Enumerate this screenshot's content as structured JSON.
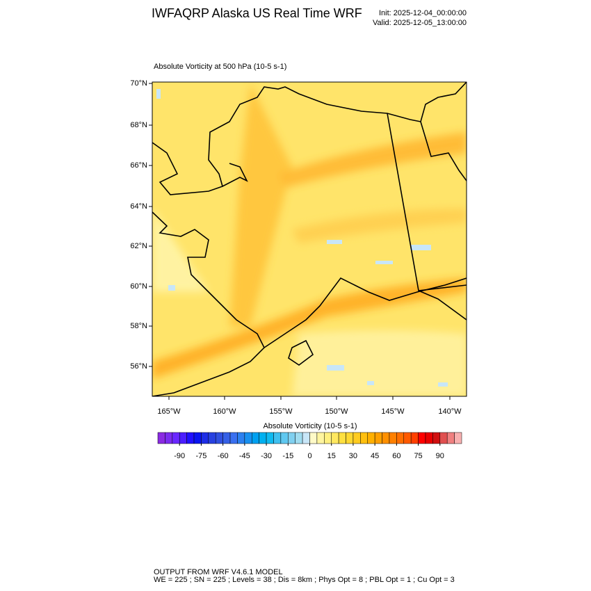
{
  "header": {
    "title": "IWFAQRP Alaska US Real Time WRF",
    "init": "Init: 2025-12-04_00:00:00",
    "valid": "Valid: 2025-12-05_13:00:00"
  },
  "plot": {
    "title": "Absolute Vorticity at 500 hPa   (10-5 s-1)",
    "lat_labels": [
      "70°N",
      "68°N",
      "66°N",
      "64°N",
      "62°N",
      "60°N",
      "58°N",
      "56°N"
    ],
    "lon_labels": [
      "165°W",
      "160°W",
      "155°W",
      "150°W",
      "145°W",
      "140°W"
    ]
  },
  "colorbar": {
    "title": "Absolute Vorticity  (10-5 s-1)",
    "clim": [
      -105,
      105
    ],
    "ticks": [
      -90,
      -75,
      -60,
      -45,
      -30,
      -15,
      0,
      15,
      30,
      45,
      60,
      75,
      90
    ],
    "colors": [
      "#8a2be2",
      "#7b2cf0",
      "#6a28ff",
      "#4b1eff",
      "#2010ff",
      "#0a14f0",
      "#1e2ee6",
      "#2841e0",
      "#3050e0",
      "#3560e6",
      "#3a70f0",
      "#2c80f0",
      "#1890f0",
      "#00a0f0",
      "#00b0f0",
      "#10baf0",
      "#40c0f0",
      "#60c8f0",
      "#80d0f0",
      "#a0dcf0",
      "#c8e6f8",
      "#fffac8",
      "#fff5a0",
      "#fff080",
      "#ffe860",
      "#ffe040",
      "#ffd830",
      "#ffcc20",
      "#ffc010",
      "#ffb000",
      "#ffa000",
      "#ff9000",
      "#ff8000",
      "#ff6e00",
      "#ff5a00",
      "#ff4000",
      "#ff0000",
      "#e80000",
      "#d01010",
      "#e05050",
      "#f08080",
      "#f8b0b0"
    ]
  },
  "footer": {
    "line1": "OUTPUT FROM WRF V4.6.1 MODEL",
    "line2": "WE = 225 ; SN = 225 ; Levels = 38 ; Dis = 8km ; Phys Opt = 8 ; PBL Opt = 1 ; Cu Opt = 3"
  }
}
